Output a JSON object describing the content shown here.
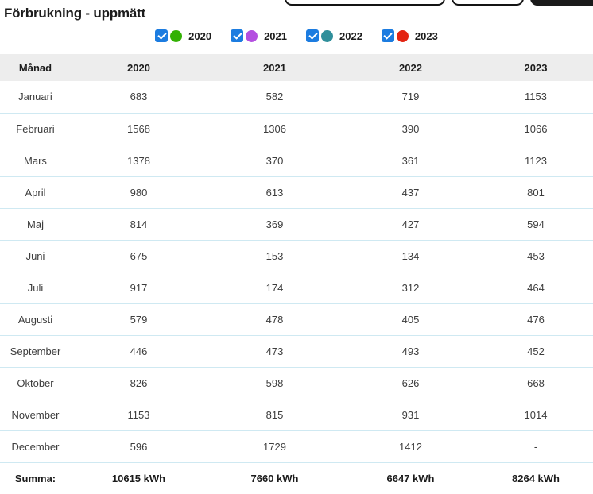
{
  "page": {
    "title": "Förbrukning - uppmätt"
  },
  "colors": {
    "checkbox_blue": "#1c7ce0",
    "year_2020": "#33b104",
    "year_2021": "#b44fe0",
    "year_2022": "#2f8f9b",
    "year_2023": "#e32412",
    "header_bg": "#ededed",
    "row_separator": "#cfe9f2"
  },
  "legend": {
    "items": [
      {
        "label": "2020",
        "checked": true,
        "color": "#33b104"
      },
      {
        "label": "2021",
        "checked": true,
        "color": "#b44fe0"
      },
      {
        "label": "2022",
        "checked": true,
        "color": "#2f8f9b"
      },
      {
        "label": "2023",
        "checked": true,
        "color": "#e32412"
      }
    ]
  },
  "table": {
    "columns": [
      "Månad",
      "2020",
      "2021",
      "2022",
      "2023"
    ],
    "rows": [
      {
        "month": "Januari",
        "values": [
          "683",
          "582",
          "719",
          "1153"
        ]
      },
      {
        "month": "Februari",
        "values": [
          "1568",
          "1306",
          "390",
          "1066"
        ]
      },
      {
        "month": "Mars",
        "values": [
          "1378",
          "370",
          "361",
          "1123"
        ]
      },
      {
        "month": "April",
        "values": [
          "980",
          "613",
          "437",
          "801"
        ]
      },
      {
        "month": "Maj",
        "values": [
          "814",
          "369",
          "427",
          "594"
        ]
      },
      {
        "month": "Juni",
        "values": [
          "675",
          "153",
          "134",
          "453"
        ]
      },
      {
        "month": "Juli",
        "values": [
          "917",
          "174",
          "312",
          "464"
        ]
      },
      {
        "month": "Augusti",
        "values": [
          "579",
          "478",
          "405",
          "476"
        ]
      },
      {
        "month": "September",
        "values": [
          "446",
          "473",
          "493",
          "452"
        ]
      },
      {
        "month": "Oktober",
        "values": [
          "826",
          "598",
          "626",
          "668"
        ]
      },
      {
        "month": "November",
        "values": [
          "1153",
          "815",
          "931",
          "1014"
        ]
      },
      {
        "month": "December",
        "values": [
          "596",
          "1729",
          "1412",
          "-"
        ]
      }
    ],
    "summary": {
      "label": "Summa:",
      "values": [
        "10615 kWh",
        "7660 kWh",
        "6647 kWh",
        "8264 kWh"
      ]
    }
  },
  "chart_data": {
    "type": "table",
    "title": "Förbrukning - uppmätt",
    "categories": [
      "Januari",
      "Februari",
      "Mars",
      "April",
      "Maj",
      "Juni",
      "Juli",
      "Augusti",
      "September",
      "Oktober",
      "November",
      "December"
    ],
    "series": [
      {
        "name": "2020",
        "values": [
          683,
          1568,
          1378,
          980,
          814,
          675,
          917,
          579,
          446,
          826,
          1153,
          596
        ]
      },
      {
        "name": "2021",
        "values": [
          582,
          1306,
          370,
          613,
          369,
          153,
          174,
          478,
          473,
          598,
          815,
          1729
        ]
      },
      {
        "name": "2022",
        "values": [
          719,
          390,
          361,
          437,
          427,
          134,
          312,
          405,
          493,
          626,
          931,
          1412
        ]
      },
      {
        "name": "2023",
        "values": [
          1153,
          1066,
          1123,
          801,
          594,
          453,
          464,
          476,
          452,
          668,
          1014,
          null
        ]
      }
    ],
    "totals": [
      "10615 kWh",
      "7660 kWh",
      "6647 kWh",
      "8264 kWh"
    ],
    "unit": "kWh"
  }
}
